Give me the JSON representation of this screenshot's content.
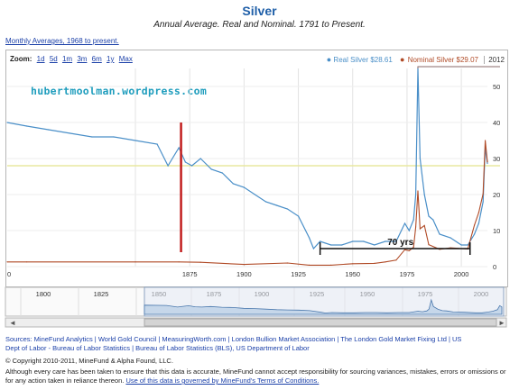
{
  "header": {
    "title": "Silver",
    "subtitle": "Annual Average. Real and Nominal. 1791 to Present.",
    "monthly_link": "Monthly Averages, 1968 to present."
  },
  "zoom": {
    "label": "Zoom:",
    "options": [
      "1d",
      "5d",
      "1m",
      "3m",
      "6m",
      "1y",
      "Max"
    ]
  },
  "legend": {
    "real_label": "Real Silver $28.61",
    "nominal_label": "Nominal Silver $29.07",
    "year": "2012"
  },
  "annotations": {
    "watermark": "hubertmoolman.wordpress.com",
    "span_label": "70 yrs"
  },
  "footer": {
    "sources_line1": "Sources: MineFund Analytics | World Gold Council | MeasuringWorth.com | London Bullion Market Association | The London Gold Market Fixing Ltd | US",
    "sources_line2": "Dept of Labor - Bureau of Labor Statistics | Bureau of Labor Statistics (BLS), US Department of Labor",
    "copyright": "© Copyright 2010-2011, MineFund & Alpha Found, LLC.",
    "disclaimer_text": "Although every care has been taken to ensure that this data is accurate, MineFund cannot accept responsibility for sourcing variances, mistakes, errors or omissions or for any action taken in reliance thereon.",
    "disclaimer_link": "Use of this data is governed by MineFund's Terms of Conditions."
  },
  "colors": {
    "real": "#4a8fc8",
    "nominal": "#b04a26",
    "marker": "#c21d1d",
    "highlight": "#e9e8a0",
    "accent": "#1f5fa8"
  },
  "chart_data": {
    "type": "line",
    "xlim": [
      1791,
      2012
    ],
    "ylim": [
      0,
      55
    ],
    "x_ticks": [
      "0",
      "1875",
      "1900",
      "1925",
      "1950",
      "1975",
      "2000"
    ],
    "y_ticks": [
      0,
      10,
      20,
      30,
      40,
      50
    ],
    "grid": true,
    "legend_position": "top-right",
    "series": [
      {
        "name": "Real Silver",
        "x": [
          1791,
          1800,
          1810,
          1820,
          1830,
          1840,
          1850,
          1860,
          1865,
          1870,
          1873,
          1876,
          1880,
          1885,
          1890,
          1895,
          1900,
          1905,
          1910,
          1915,
          1920,
          1925,
          1930,
          1932,
          1935,
          1940,
          1945,
          1950,
          1955,
          1960,
          1965,
          1970,
          1974,
          1976,
          1978,
          1979,
          1980,
          1981,
          1983,
          1985,
          1987,
          1990,
          1995,
          2000,
          2003,
          2006,
          2008,
          2010,
          2011,
          2012
        ],
        "values": [
          40,
          39,
          38,
          37,
          36,
          36,
          35,
          34,
          28,
          33,
          29,
          28,
          30,
          27,
          26,
          23,
          22,
          20,
          18,
          17,
          16,
          14,
          8,
          5,
          7,
          6,
          6,
          7,
          7,
          6,
          7,
          7,
          12,
          10,
          13,
          20,
          55,
          30,
          20,
          14,
          13,
          9,
          8,
          6,
          6,
          9,
          12,
          18,
          33,
          28.61
        ]
      },
      {
        "name": "Nominal Silver",
        "x": [
          1791,
          1800,
          1850,
          1870,
          1880,
          1900,
          1920,
          1930,
          1940,
          1950,
          1960,
          1965,
          1970,
          1974,
          1976,
          1978,
          1979,
          1980,
          1981,
          1983,
          1985,
          1990,
          1995,
          2000,
          2003,
          2006,
          2008,
          2010,
          2011,
          2012
        ],
        "values": [
          1.3,
          1.3,
          1.3,
          1.3,
          1.2,
          0.6,
          1.0,
          0.4,
          0.4,
          0.8,
          0.9,
          1.3,
          1.8,
          4.7,
          4.4,
          5.4,
          11,
          21,
          10.5,
          11.4,
          6.1,
          4.8,
          5.2,
          5.0,
          4.9,
          11.5,
          15,
          20.2,
          35,
          29.07
        ]
      }
    ],
    "navigator": {
      "ticks": [
        "1800",
        "1825",
        "1850",
        "1875",
        "1900",
        "1925",
        "1950",
        "1975",
        "2000"
      ]
    }
  }
}
